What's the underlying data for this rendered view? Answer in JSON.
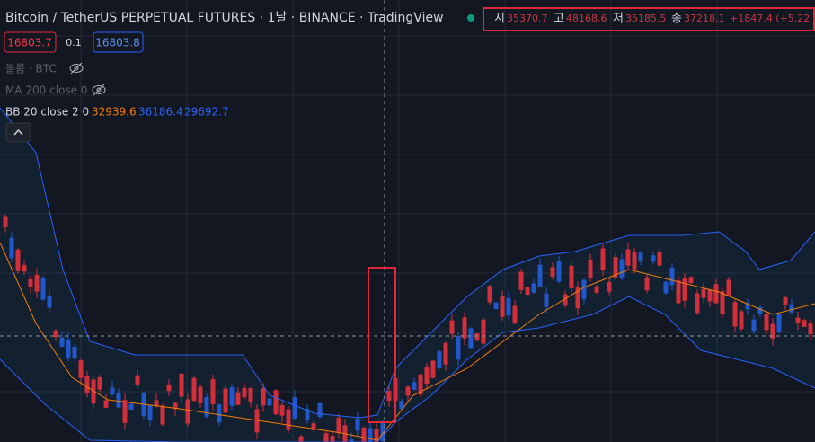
{
  "header": {
    "title": "Bitcoin / TetherUS PERPETUAL FUTURES · 1날 · BINANCE · TradingView",
    "ohlc": [
      {
        "label": "시",
        "value": "35370.7"
      },
      {
        "label": "고",
        "value": "48168.6"
      },
      {
        "label": "저",
        "value": "35185.5"
      },
      {
        "label": "종",
        "value": "37218.1"
      }
    ],
    "change": "+1847.4 (+5.22"
  },
  "trade": {
    "sell": "16803.7",
    "spread": "0.1",
    "buy": "16803.8"
  },
  "indicators": [
    {
      "name": "볼륨 · BTC"
    },
    {
      "name": "MA 200 close 0"
    },
    {
      "name": "BB 20 close 2 0",
      "values": [
        "32939.6",
        "36186.4",
        "29692.7"
      ]
    }
  ]
}
